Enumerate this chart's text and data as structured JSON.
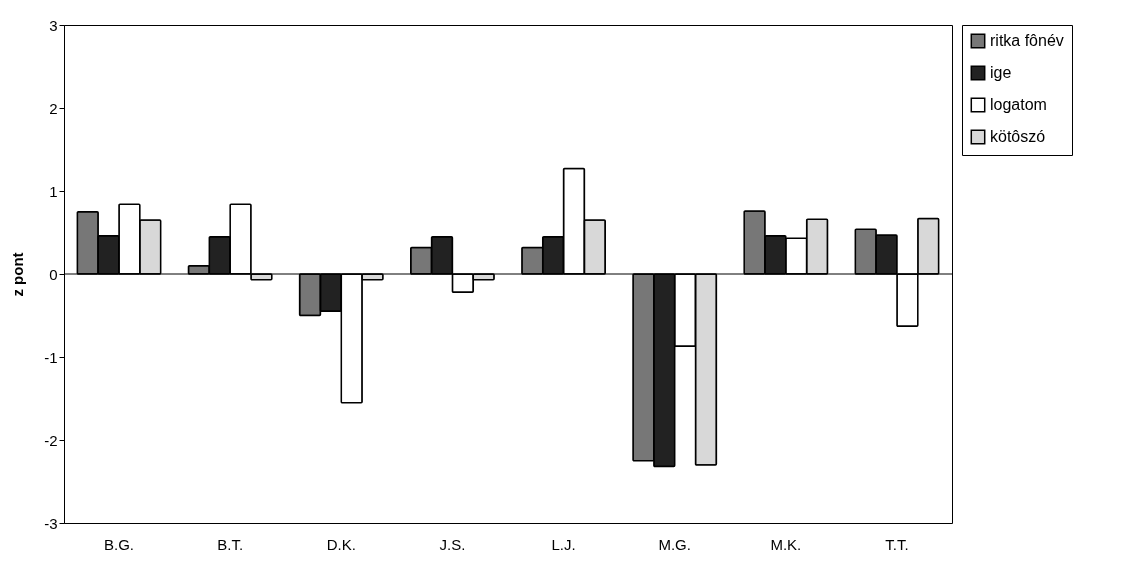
{
  "chart_data": {
    "type": "bar",
    "ylabel": "z pont",
    "categories": [
      "B.G.",
      "B.T.",
      "D.K.",
      "J.S.",
      "L.J.",
      "M.G.",
      "M.K.",
      "T.T."
    ],
    "series": [
      {
        "name": "ritka fônév",
        "color": "#777777",
        "values": [
          0.75,
          0.1,
          -0.5,
          0.32,
          0.32,
          -2.25,
          0.76,
          0.54
        ]
      },
      {
        "name": "ige",
        "color": "#222222",
        "values": [
          0.46,
          0.45,
          -0.45,
          0.45,
          0.45,
          -2.32,
          0.46,
          0.47
        ]
      },
      {
        "name": "logatom",
        "color": "#ffffff",
        "values": [
          0.84,
          0.84,
          -1.55,
          -0.22,
          1.27,
          -0.87,
          0.43,
          -0.63
        ]
      },
      {
        "name": "kötôszó",
        "color": "#d8d8d8",
        "values": [
          0.65,
          -0.07,
          -0.07,
          -0.07,
          0.65,
          -2.3,
          0.66,
          0.67
        ]
      }
    ],
    "ylim": [
      -3,
      3
    ],
    "yticks": [
      -3,
      -2,
      -1,
      0,
      1,
      2,
      3
    ],
    "grid": false,
    "legend": "right",
    "ref_lines": [
      {
        "axis": "y",
        "value": 0
      }
    ]
  }
}
